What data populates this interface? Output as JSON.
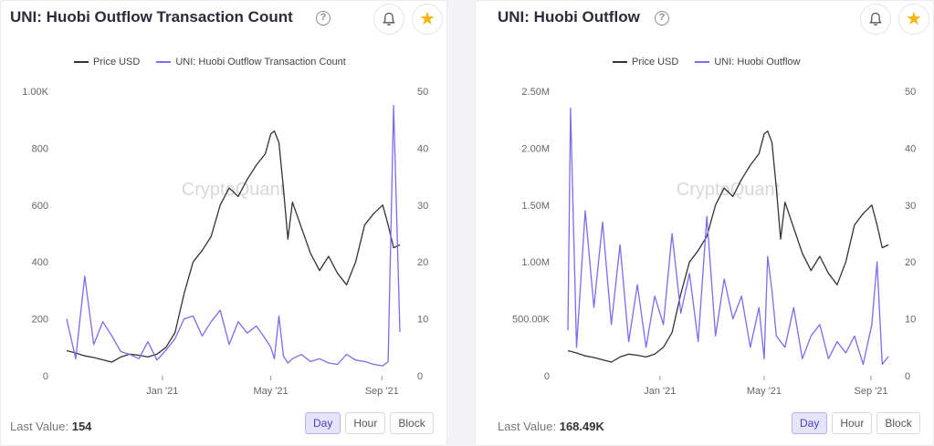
{
  "colors": {
    "price": "#333333",
    "series": "#7b6cf0",
    "accent": "#4a40c8",
    "star": "#f5b50f"
  },
  "icons": [
    "question-circle-icon",
    "bell-icon",
    "star-icon"
  ],
  "watermark": "CryptoQuant",
  "charts": [
    {
      "title": "UNI: Huobi Outflow Transaction Count",
      "legend": [
        "Price USD",
        "UNI: Huobi Outflow Transaction Count"
      ],
      "last_value_label": "Last Value:",
      "last_value": "154",
      "resolution_buttons": [
        "Day",
        "Hour",
        "Block"
      ],
      "active_resolution": "Day"
    },
    {
      "title": "UNI: Huobi Outflow",
      "legend": [
        "Price USD",
        "UNI: Huobi Outflow"
      ],
      "last_value_label": "Last Value:",
      "last_value": "168.49K",
      "resolution_buttons": [
        "Day",
        "Hour",
        "Block"
      ],
      "active_resolution": "Day"
    }
  ],
  "chart_data": [
    {
      "type": "line",
      "title": "UNI: Huobi Outflow Transaction Count",
      "x_ticks": [
        "Jan '21",
        "May '21",
        "Sep '21"
      ],
      "x_tick_dates": [
        "2021-01-01",
        "2021-05-01",
        "2021-09-01"
      ],
      "x_range": [
        "2020-09-17",
        "2021-09-21"
      ],
      "y_left": {
        "ticks": [
          "0",
          "200",
          "400",
          "600",
          "800",
          "1.00K"
        ],
        "range": [
          0,
          1000
        ]
      },
      "y_right": {
        "ticks": [
          "0",
          "10",
          "20",
          "30",
          "40",
          "50"
        ],
        "range": [
          0,
          50
        ]
      },
      "grid": false,
      "legend_position": "top",
      "series": [
        {
          "name": "Price USD",
          "axis": "right",
          "dates": [
            "2020-09-17",
            "2020-09-27",
            "2020-10-07",
            "2020-10-17",
            "2020-10-27",
            "2020-11-06",
            "2020-11-16",
            "2020-11-26",
            "2020-12-06",
            "2020-12-16",
            "2020-12-26",
            "2021-01-05",
            "2021-01-15",
            "2021-01-25",
            "2021-02-04",
            "2021-02-14",
            "2021-02-24",
            "2021-03-06",
            "2021-03-16",
            "2021-03-26",
            "2021-04-05",
            "2021-04-15",
            "2021-04-25",
            "2021-05-01",
            "2021-05-05",
            "2021-05-10",
            "2021-05-15",
            "2021-05-20",
            "2021-05-25",
            "2021-06-04",
            "2021-06-14",
            "2021-06-24",
            "2021-07-04",
            "2021-07-14",
            "2021-07-24",
            "2021-08-03",
            "2021-08-13",
            "2021-08-23",
            "2021-09-02",
            "2021-09-08",
            "2021-09-14",
            "2021-09-21"
          ],
          "values": [
            4.4,
            4.0,
            3.5,
            3.2,
            2.8,
            2.4,
            3.3,
            3.8,
            3.6,
            3.3,
            3.8,
            5.0,
            7.6,
            14.4,
            20.0,
            22.0,
            24.5,
            30.0,
            33.0,
            31.5,
            34.5,
            37.0,
            39.0,
            42.5,
            43.0,
            41.0,
            33.0,
            24.0,
            30.5,
            26.0,
            21.5,
            18.5,
            21.0,
            18.0,
            16.0,
            20.0,
            26.5,
            28.5,
            30.0,
            26.5,
            22.5,
            23.0
          ]
        },
        {
          "name": "UNI: Huobi Outflow Transaction Count",
          "axis": "left",
          "dates": [
            "2020-09-17",
            "2020-09-27",
            "2020-10-07",
            "2020-10-17",
            "2020-10-27",
            "2020-11-06",
            "2020-11-16",
            "2020-11-26",
            "2020-12-06",
            "2020-12-16",
            "2020-12-26",
            "2021-01-05",
            "2021-01-15",
            "2021-01-25",
            "2021-02-04",
            "2021-02-14",
            "2021-02-24",
            "2021-03-06",
            "2021-03-16",
            "2021-03-26",
            "2021-04-05",
            "2021-04-15",
            "2021-04-25",
            "2021-05-01",
            "2021-05-05",
            "2021-05-10",
            "2021-05-15",
            "2021-05-20",
            "2021-05-25",
            "2021-06-04",
            "2021-06-14",
            "2021-06-24",
            "2021-07-04",
            "2021-07-14",
            "2021-07-24",
            "2021-08-03",
            "2021-08-13",
            "2021-08-23",
            "2021-09-02",
            "2021-09-08",
            "2021-09-14",
            "2021-09-21"
          ],
          "values": [
            200,
            60,
            350,
            110,
            190,
            140,
            85,
            75,
            60,
            120,
            55,
            90,
            130,
            200,
            210,
            140,
            190,
            230,
            110,
            190,
            150,
            175,
            130,
            100,
            60,
            210,
            70,
            45,
            60,
            75,
            50,
            60,
            45,
            40,
            75,
            55,
            50,
            40,
            35,
            50,
            950,
            154
          ]
        }
      ]
    },
    {
      "type": "line",
      "title": "UNI: Huobi Outflow",
      "x_ticks": [
        "Jan '21",
        "May '21",
        "Sep '21"
      ],
      "x_tick_dates": [
        "2021-01-01",
        "2021-05-01",
        "2021-09-01"
      ],
      "x_range": [
        "2020-09-17",
        "2021-09-21"
      ],
      "y_left": {
        "ticks": [
          "0",
          "500.00K",
          "1.00M",
          "1.50M",
          "2.00M",
          "2.50M"
        ],
        "range": [
          0,
          2500000
        ]
      },
      "y_right": {
        "ticks": [
          "0",
          "10",
          "20",
          "30",
          "40",
          "50"
        ],
        "range": [
          0,
          50
        ]
      },
      "grid": false,
      "legend_position": "top",
      "series": [
        {
          "name": "Price USD",
          "axis": "right",
          "dates": [
            "2020-09-17",
            "2020-09-27",
            "2020-10-07",
            "2020-10-17",
            "2020-10-27",
            "2020-11-06",
            "2020-11-16",
            "2020-11-26",
            "2020-12-06",
            "2020-12-16",
            "2020-12-26",
            "2021-01-05",
            "2021-01-15",
            "2021-01-25",
            "2021-02-04",
            "2021-02-14",
            "2021-02-24",
            "2021-03-06",
            "2021-03-16",
            "2021-03-26",
            "2021-04-05",
            "2021-04-15",
            "2021-04-25",
            "2021-05-01",
            "2021-05-05",
            "2021-05-10",
            "2021-05-15",
            "2021-05-20",
            "2021-05-25",
            "2021-06-04",
            "2021-06-14",
            "2021-06-24",
            "2021-07-04",
            "2021-07-14",
            "2021-07-24",
            "2021-08-03",
            "2021-08-13",
            "2021-08-23",
            "2021-09-02",
            "2021-09-08",
            "2021-09-14",
            "2021-09-21"
          ],
          "values": [
            4.4,
            4.0,
            3.5,
            3.2,
            2.8,
            2.4,
            3.3,
            3.8,
            3.6,
            3.3,
            3.8,
            5.0,
            7.6,
            14.4,
            20.0,
            22.0,
            24.5,
            30.0,
            33.0,
            31.5,
            34.5,
            37.0,
            39.0,
            42.5,
            43.0,
            41.0,
            33.0,
            24.0,
            30.5,
            26.0,
            21.5,
            18.5,
            21.0,
            18.0,
            16.0,
            20.0,
            26.5,
            28.5,
            30.0,
            26.5,
            22.5,
            23.0
          ]
        },
        {
          "name": "UNI: Huobi Outflow",
          "axis": "left",
          "dates": [
            "2020-09-17",
            "2020-09-20",
            "2020-09-27",
            "2020-10-07",
            "2020-10-17",
            "2020-10-27",
            "2020-11-06",
            "2020-11-16",
            "2020-11-26",
            "2020-12-06",
            "2020-12-16",
            "2020-12-26",
            "2021-01-05",
            "2021-01-15",
            "2021-01-25",
            "2021-02-04",
            "2021-02-14",
            "2021-02-24",
            "2021-03-06",
            "2021-03-16",
            "2021-03-26",
            "2021-04-05",
            "2021-04-15",
            "2021-04-25",
            "2021-05-01",
            "2021-05-05",
            "2021-05-10",
            "2021-05-15",
            "2021-05-20",
            "2021-05-25",
            "2021-06-04",
            "2021-06-14",
            "2021-06-24",
            "2021-07-04",
            "2021-07-14",
            "2021-07-24",
            "2021-08-03",
            "2021-08-13",
            "2021-08-23",
            "2021-09-02",
            "2021-09-08",
            "2021-09-14",
            "2021-09-21"
          ],
          "values": [
            400000,
            2350000,
            250000,
            1450000,
            600000,
            1350000,
            450000,
            1150000,
            300000,
            800000,
            250000,
            700000,
            450000,
            1250000,
            550000,
            900000,
            300000,
            1400000,
            350000,
            850000,
            500000,
            700000,
            250000,
            600000,
            150000,
            1050000,
            750000,
            350000,
            300000,
            250000,
            600000,
            150000,
            350000,
            450000,
            150000,
            300000,
            200000,
            350000,
            100000,
            450000,
            1000000,
            100000,
            168490
          ]
        }
      ]
    }
  ]
}
